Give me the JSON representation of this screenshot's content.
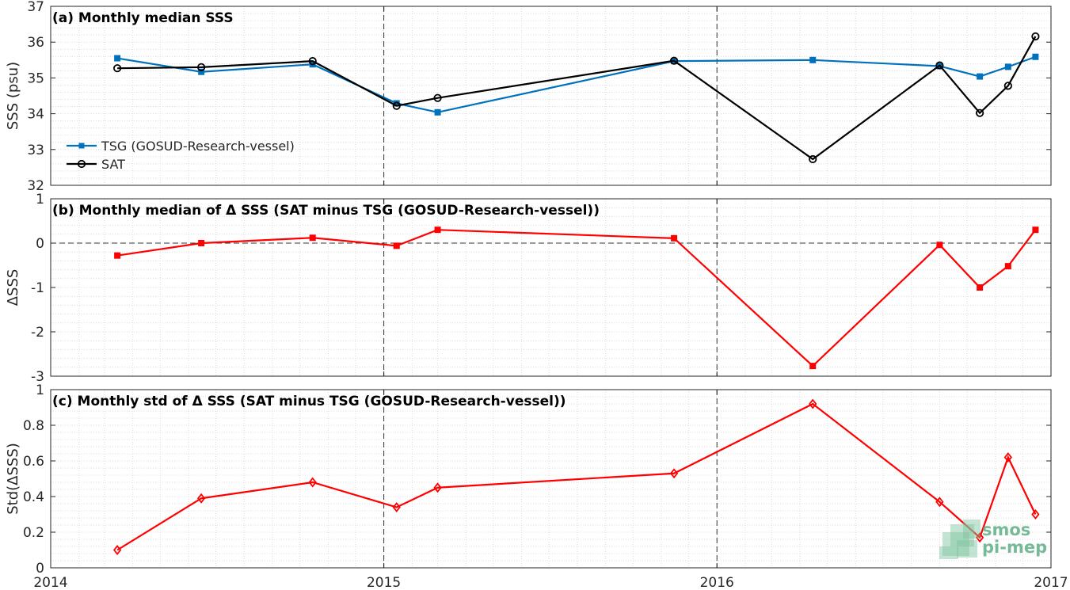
{
  "chart_data": [
    {
      "type": "line",
      "title": "(a) Monthly median SSS",
      "ylabel": "SSS (psu)",
      "xlim": [
        "2014-01-01",
        "2017-01-01"
      ],
      "ylim": [
        32,
        37
      ],
      "yticks": [
        32,
        33,
        34,
        35,
        36,
        37
      ],
      "xticks": [
        "2014",
        "2015",
        "2016",
        "2017"
      ],
      "legend_location": "bottom-left",
      "grid": true,
      "series": [
        {
          "name": "TSG (GOSUD-Research-vessel)",
          "color": "#0072bd",
          "marker": "square",
          "x": [
            "2014-03-15",
            "2014-06-15",
            "2014-10-15",
            "2015-01-15",
            "2015-03-01",
            "2015-11-15",
            "2016-04-15",
            "2016-09-01",
            "2016-10-15",
            "2016-11-15",
            "2016-12-15"
          ],
          "values": [
            35.55,
            35.17,
            35.38,
            34.29,
            34.04,
            35.47,
            35.5,
            35.33,
            35.04,
            35.31,
            35.59
          ]
        },
        {
          "name": "SAT",
          "color": "#000000",
          "marker": "circle",
          "x": [
            "2014-03-15",
            "2014-06-15",
            "2014-10-15",
            "2015-01-15",
            "2015-03-01",
            "2015-11-15",
            "2016-04-15",
            "2016-09-01",
            "2016-10-15",
            "2016-11-15",
            "2016-12-15"
          ],
          "values": [
            35.27,
            35.3,
            35.47,
            34.22,
            34.44,
            35.48,
            32.73,
            35.35,
            34.02,
            34.78,
            36.16
          ]
        }
      ],
      "vlines": [
        "2015-01-01",
        "2016-01-01"
      ]
    },
    {
      "type": "line",
      "title": "(b) Monthly median of Δ SSS (SAT minus TSG (GOSUD-Research-vessel))",
      "ylabel": "ΔSSS",
      "xlim": [
        "2014-01-01",
        "2017-01-01"
      ],
      "ylim": [
        -3,
        1
      ],
      "yticks": [
        -3,
        -2,
        -1,
        0,
        1
      ],
      "xticks": [
        "2014",
        "2015",
        "2016",
        "2017"
      ],
      "grid": true,
      "hline": 0,
      "series": [
        {
          "color": "#ff0000",
          "marker": "square",
          "x": [
            "2014-03-15",
            "2014-06-15",
            "2014-10-15",
            "2015-01-15",
            "2015-03-01",
            "2015-11-15",
            "2016-04-15",
            "2016-09-01",
            "2016-10-15",
            "2016-11-15",
            "2016-12-15"
          ],
          "values": [
            -0.28,
            0.0,
            0.12,
            -0.06,
            0.3,
            0.11,
            -2.77,
            -0.04,
            -1.0,
            -0.52,
            0.3
          ]
        }
      ],
      "vlines": [
        "2015-01-01",
        "2016-01-01"
      ]
    },
    {
      "type": "line",
      "title": "(c) Monthly std of Δ SSS (SAT minus TSG (GOSUD-Research-vessel))",
      "ylabel": "Std(ΔSSS)",
      "xlim": [
        "2014-01-01",
        "2017-01-01"
      ],
      "ylim": [
        0,
        1
      ],
      "yticks": [
        0,
        0.2,
        0.4,
        0.6,
        0.8,
        1
      ],
      "xticks": [
        "2014",
        "2015",
        "2016",
        "2017"
      ],
      "grid": true,
      "series": [
        {
          "color": "#ff0000",
          "marker": "diamond",
          "x": [
            "2014-03-15",
            "2014-06-15",
            "2014-10-15",
            "2015-01-15",
            "2015-03-01",
            "2015-11-15",
            "2016-04-15",
            "2016-09-01",
            "2016-10-15",
            "2016-11-15",
            "2016-12-15"
          ],
          "values": [
            0.1,
            0.39,
            0.48,
            0.34,
            0.45,
            0.53,
            0.92,
            0.37,
            0.17,
            0.62,
            0.3
          ]
        }
      ],
      "vlines": [
        "2015-01-01",
        "2016-01-01"
      ]
    }
  ],
  "watermark": {
    "line1": "smos",
    "line2": "pi-mep"
  }
}
